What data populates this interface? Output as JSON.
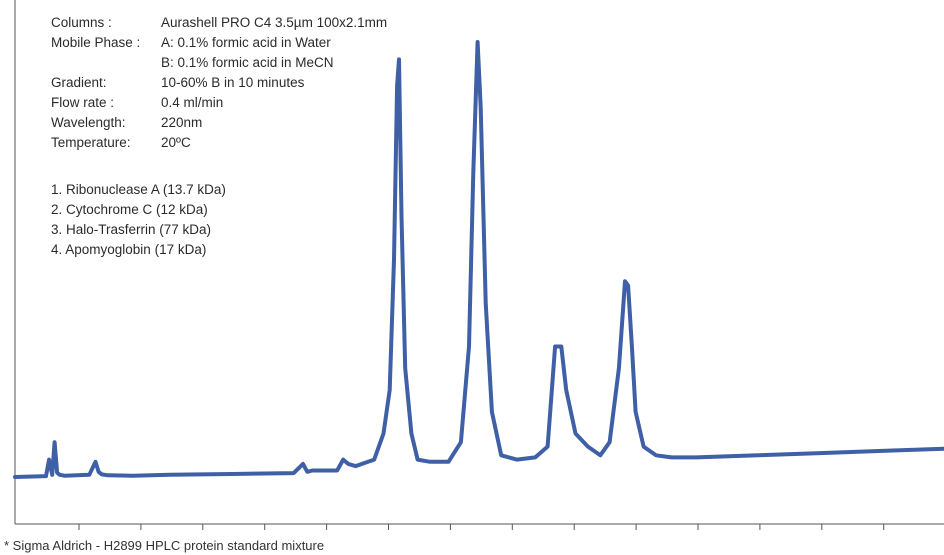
{
  "info": {
    "columns_label": "Columns :",
    "columns_value": "Aurashell PRO C4 3.5µm 100x2.1mm",
    "mobile_label": "Mobile Phase :",
    "mobile_a": "A:  0.1% formic acid in Water",
    "mobile_b": "B:  0.1% formic acid in MeCN",
    "gradient_label": "Gradient:",
    "gradient_value": "10-60% B in 10 minutes",
    "flow_label": "Flow rate :",
    "flow_value": "0.4 ml/min",
    "wavelength_label": "Wavelength:",
    "wavelength_value": "220nm",
    "temperature_label": "Temperature:",
    "temperature_value": "20ºC"
  },
  "peak_list": [
    "1. Ribonuclease A (13.7 kDa)",
    "2. Cytochrome C  (12 kDa)",
    "3. Halo-Trasferrin (77 kDa)",
    "4. Apomyoglobin  (17 kDa)"
  ],
  "footnote": "* Sigma Aldrich - H2899 HPLC protein standard mixture",
  "chart_data": {
    "type": "line",
    "title": "",
    "xlabel": "",
    "ylabel": "",
    "tick_labels_shown": false,
    "tick_count": 15,
    "xlim": [
      0,
      15
    ],
    "ylim": [
      0,
      100
    ],
    "line_color": "#3f5fa6",
    "series": [
      {
        "x": [
          0,
          0.5,
          0.55,
          0.6,
          0.64,
          0.68,
          0.72,
          0.8,
          1.2,
          1.3,
          1.35,
          1.4,
          1.5,
          1.9,
          2.5,
          3.5,
          4.5,
          4.65,
          4.72,
          4.8,
          5.2,
          5.3,
          5.38,
          5.5,
          5.8,
          5.95,
          6.05,
          6.12,
          6.17,
          6.2,
          6.24,
          6.3,
          6.4,
          6.5,
          6.7,
          7.0,
          7.2,
          7.33,
          7.4,
          7.47,
          7.52,
          7.6,
          7.7,
          7.85,
          8.1,
          8.4,
          8.6,
          8.72,
          8.82,
          8.9,
          9.05,
          9.25,
          9.45,
          9.6,
          9.75,
          9.85,
          9.9,
          9.96,
          10.02,
          10.15,
          10.35,
          10.6,
          11,
          12,
          13,
          14,
          15
        ],
        "y": [
          0,
          0.2,
          4,
          0.5,
          8,
          1,
          0.5,
          0.3,
          0.5,
          3.5,
          1.2,
          0.6,
          0.4,
          0.3,
          0.5,
          0.7,
          0.9,
          3,
          1.2,
          1.5,
          1.5,
          4,
          3,
          2.5,
          4,
          10,
          20,
          50,
          90,
          96,
          60,
          25,
          10,
          4,
          3.5,
          3.5,
          8,
          30,
          70,
          100,
          85,
          40,
          15,
          5,
          4,
          4.5,
          7,
          30,
          30,
          20,
          10,
          7,
          5,
          8,
          25,
          45,
          44,
          30,
          15,
          7,
          5,
          4.5,
          4.5,
          5,
          5.5,
          6,
          6.5
        ]
      }
    ],
    "annotations": [
      {
        "label": "Columns : Aurashell PRO C4 3.5µm 100x2.1mm"
      }
    ]
  }
}
